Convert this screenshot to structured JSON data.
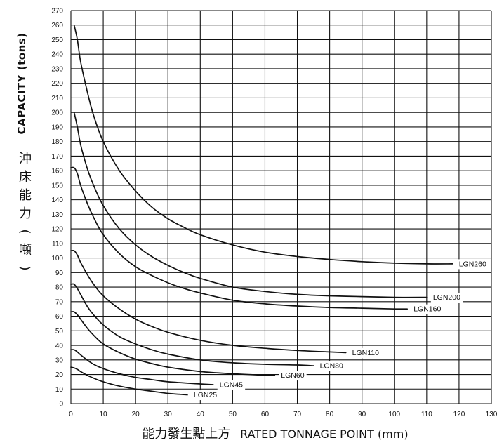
{
  "chart_data": {
    "type": "line",
    "xlabel_zh": "能力發生點上方",
    "xlabel_en": "RATED TONNAGE POINT (mm)",
    "ylabel_en": "CAPACITY (tons)",
    "ylabel_zh": [
      "沖",
      "床",
      "能",
      "力",
      "(",
      "噸",
      ")"
    ],
    "xlim": [
      0,
      130
    ],
    "ylim": [
      0,
      270
    ],
    "x_ticks": [
      0,
      10,
      20,
      30,
      40,
      50,
      60,
      70,
      80,
      90,
      100,
      110,
      120,
      130
    ],
    "y_ticks": [
      0,
      10,
      20,
      30,
      40,
      50,
      60,
      70,
      80,
      90,
      100,
      110,
      120,
      130,
      140,
      150,
      160,
      170,
      180,
      190,
      200,
      210,
      220,
      230,
      240,
      250,
      260,
      270
    ],
    "grid": true,
    "series": [
      {
        "name": "LGN260",
        "x": [
          1,
          2,
          3,
          5,
          7,
          10,
          15,
          20,
          25,
          30,
          35,
          40,
          50,
          60,
          70,
          80,
          90,
          100,
          110,
          118
        ],
        "y": [
          260,
          250,
          235,
          215,
          198,
          180,
          160,
          146,
          135,
          127,
          121,
          116,
          109,
          104,
          101,
          99,
          97.5,
          96.5,
          96,
          96
        ]
      },
      {
        "name": "LGN200",
        "x": [
          1,
          2,
          3,
          5,
          7,
          10,
          15,
          20,
          25,
          30,
          35,
          40,
          50,
          60,
          70,
          80,
          90,
          100,
          110
        ],
        "y": [
          200,
          190,
          178,
          162,
          150,
          136,
          120,
          109,
          101,
          95,
          90,
          86,
          80,
          77,
          75,
          74,
          73.5,
          73,
          73
        ]
      },
      {
        "name": "LGN160",
        "x": [
          0,
          1,
          2,
          3,
          5,
          7,
          10,
          15,
          20,
          25,
          30,
          35,
          40,
          50,
          60,
          70,
          80,
          90,
          100,
          104
        ],
        "y": [
          162,
          162,
          158,
          150,
          138,
          128,
          116,
          103,
          94,
          88,
          83,
          79,
          76,
          71,
          68.5,
          67,
          66,
          65.5,
          65,
          65
        ]
      },
      {
        "name": "LGN110",
        "x": [
          0,
          1,
          2,
          3,
          5,
          7,
          10,
          15,
          20,
          25,
          30,
          40,
          50,
          60,
          70,
          80,
          85
        ],
        "y": [
          105,
          105,
          102,
          97,
          89,
          82,
          74,
          65,
          58,
          53,
          49,
          43.5,
          40,
          38,
          36.5,
          35.5,
          35
        ]
      },
      {
        "name": "LGN80",
        "x": [
          0,
          1,
          2,
          3,
          5,
          7,
          10,
          15,
          20,
          25,
          30,
          40,
          50,
          60,
          70,
          75
        ],
        "y": [
          82,
          82,
          79,
          75,
          67,
          61,
          54,
          46,
          41,
          37,
          34,
          30,
          28,
          27,
          26.5,
          26
        ]
      },
      {
        "name": "LGN60",
        "x": [
          0,
          1,
          2,
          3,
          5,
          7,
          10,
          15,
          20,
          25,
          30,
          40,
          50,
          60,
          63
        ],
        "y": [
          63,
          63,
          61,
          58,
          52,
          47,
          41,
          35,
          30.5,
          27.5,
          25,
          22,
          20.5,
          19.5,
          19.5
        ]
      },
      {
        "name": "LGN45",
        "x": [
          0,
          1,
          2,
          3,
          5,
          7,
          10,
          15,
          20,
          25,
          30,
          40,
          44
        ],
        "y": [
          37,
          37,
          35.5,
          33.5,
          30,
          27,
          24,
          20.5,
          18,
          16.5,
          15,
          13.5,
          13
        ]
      },
      {
        "name": "LGN25",
        "x": [
          0,
          1,
          2,
          3,
          5,
          7,
          10,
          15,
          20,
          25,
          30,
          36
        ],
        "y": [
          25,
          24.5,
          23.5,
          22,
          19.5,
          17.5,
          15,
          12,
          10,
          8.5,
          7,
          6
        ]
      }
    ]
  }
}
